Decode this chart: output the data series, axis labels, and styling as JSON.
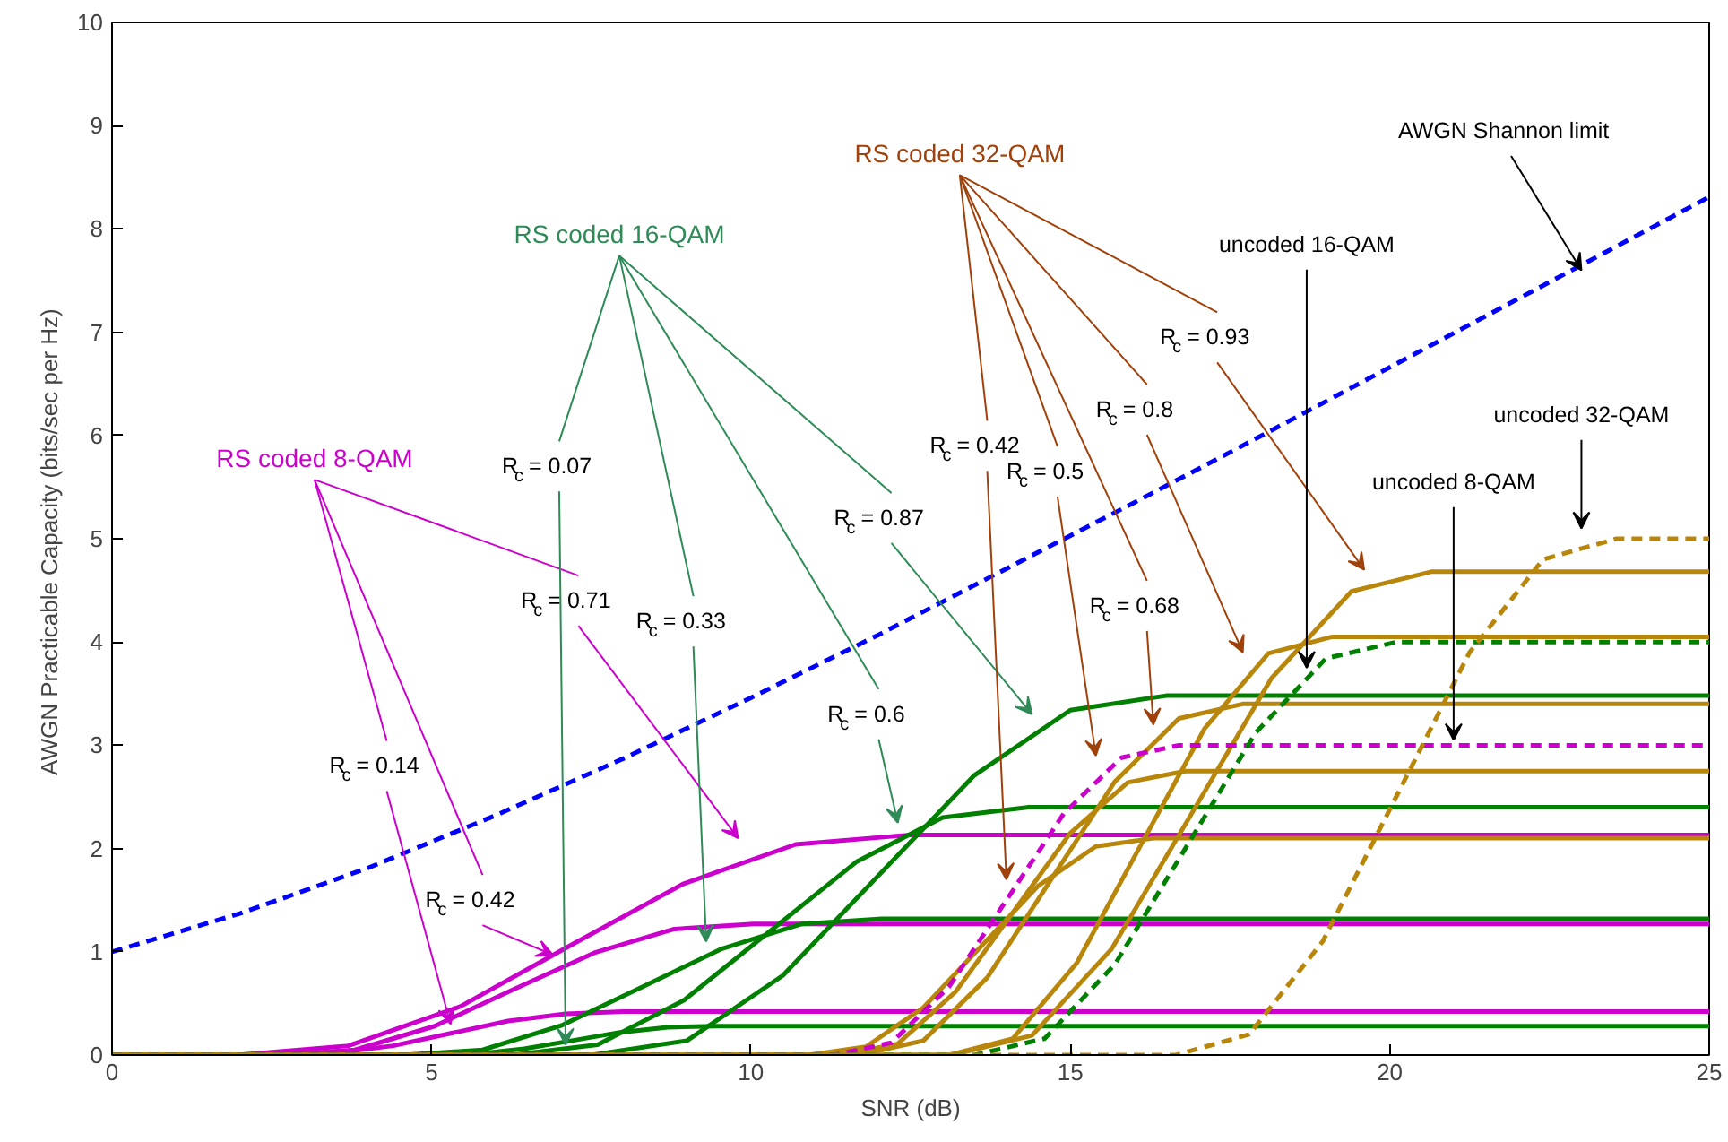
{
  "chart_data": {
    "type": "line",
    "xlabel": "SNR (dB)",
    "ylabel": "AWGN Practicable Capacity  (bits/sec per Hz)",
    "xlim": [
      0,
      25
    ],
    "ylim": [
      0,
      10
    ],
    "xticks": [
      0,
      5,
      10,
      15,
      20,
      25
    ],
    "yticks": [
      0,
      1,
      2,
      3,
      4,
      5,
      6,
      7,
      8,
      9,
      10
    ],
    "grid": false,
    "marker": "none",
    "series": [
      {
        "color": "#0000ff",
        "line_style": "dashed",
        "x": [
          0,
          2,
          4,
          6,
          8,
          10,
          12,
          14,
          16,
          18,
          20,
          22,
          24,
          25
        ],
        "values": [
          1,
          1.37,
          1.81,
          2.32,
          2.87,
          3.46,
          4.07,
          4.71,
          5.35,
          6.0,
          6.66,
          7.32,
          7.98,
          8.31
        ]
      },
      {
        "color": "#cc00cc",
        "line_style": "solid",
        "x": [
          0,
          2.6,
          3.5,
          4.4,
          5.3,
          6.2,
          7.1,
          8.0,
          25
        ],
        "values": [
          0,
          0,
          0.02,
          0.09,
          0.21,
          0.33,
          0.4,
          0.42,
          0.42
        ]
      },
      {
        "color": "#cc00cc",
        "line_style": "solid",
        "x": [
          0,
          2.55,
          3.8,
          5.05,
          6.3,
          7.55,
          8.8,
          10.05,
          25
        ],
        "values": [
          0,
          0,
          0.05,
          0.28,
          0.64,
          0.99,
          1.22,
          1.27,
          1.27
        ]
      },
      {
        "color": "#cc00cc",
        "line_style": "solid",
        "x": [
          0,
          1.95,
          3.7,
          5.45,
          7.2,
          8.95,
          10.7,
          12.45,
          25
        ],
        "values": [
          0,
          0,
          0.09,
          0.47,
          1.07,
          1.66,
          2.04,
          2.13,
          2.13
        ]
      },
      {
        "color": "#008000",
        "line_style": "solid",
        "x": [
          0,
          4.95,
          5.7,
          6.45,
          7.2,
          7.95,
          8.7,
          9.45,
          25
        ],
        "values": [
          0,
          0,
          0.01,
          0.06,
          0.14,
          0.22,
          0.27,
          0.28,
          0.28
        ]
      },
      {
        "color": "#008000",
        "line_style": "solid",
        "x": [
          0,
          4.55,
          5.8,
          7.05,
          8.3,
          9.55,
          10.8,
          12.05,
          25
        ],
        "values": [
          0,
          0,
          0.05,
          0.29,
          0.66,
          1.03,
          1.27,
          1.32,
          1.32
        ]
      },
      {
        "color": "#008000",
        "line_style": "solid",
        "x": [
          0,
          6.25,
          7.6,
          8.95,
          10.3,
          11.65,
          13.0,
          14.35,
          25
        ],
        "values": [
          0,
          0,
          0.1,
          0.53,
          1.2,
          1.87,
          2.3,
          2.4,
          2.4
        ]
      },
      {
        "color": "#008000",
        "line_style": "solid",
        "x": [
          0,
          7.5,
          9,
          10.5,
          12,
          13.5,
          15,
          16.5,
          25
        ],
        "values": [
          0,
          0,
          0.14,
          0.77,
          1.74,
          2.71,
          3.34,
          3.48,
          3.48
        ]
      },
      {
        "color": "#b8860b",
        "line_style": "solid",
        "x": [
          0,
          10.9,
          11.8,
          12.7,
          13.6,
          14.5,
          15.4,
          16.3,
          25
        ],
        "values": [
          0,
          0,
          0.08,
          0.46,
          1.05,
          1.64,
          2.02,
          2.1,
          2.1
        ]
      },
      {
        "color": "#b8860b",
        "line_style": "solid",
        "x": [
          0,
          11.4,
          12.3,
          13.2,
          14.1,
          15.0,
          15.9,
          16.8,
          25
        ],
        "values": [
          0,
          0,
          0.11,
          0.61,
          1.38,
          2.15,
          2.64,
          2.75,
          2.75
        ]
      },
      {
        "color": "#b8860b",
        "line_style": "solid",
        "x": [
          0,
          11.7,
          12.7,
          13.7,
          14.7,
          15.7,
          16.7,
          17.7,
          25
        ],
        "values": [
          0,
          0,
          0.14,
          0.75,
          1.7,
          2.65,
          3.26,
          3.4,
          3.4
        ]
      },
      {
        "color": "#b8860b",
        "line_style": "solid",
        "x": [
          0,
          13.1,
          14.1,
          15.1,
          16.1,
          17.1,
          18.1,
          19.1,
          25
        ],
        "values": [
          0,
          0,
          0.16,
          0.89,
          2.03,
          3.16,
          3.89,
          4.05,
          4.05
        ]
      },
      {
        "color": "#b8860b",
        "line_style": "solid",
        "x": [
          0,
          13.15,
          14.4,
          15.65,
          16.9,
          18.15,
          19.4,
          20.65,
          25
        ],
        "values": [
          0,
          0,
          0.19,
          1.03,
          2.34,
          3.65,
          4.49,
          4.68,
          4.68
        ]
      },
      {
        "color": "#cc00cc",
        "line_style": "dashed",
        "x": [
          0,
          11.3,
          12.2,
          13.1,
          14.0,
          14.9,
          15.8,
          16.7,
          25
        ],
        "values": [
          0,
          0,
          0.12,
          0.66,
          1.5,
          2.34,
          2.88,
          3.0,
          3.0
        ]
      },
      {
        "color": "#008000",
        "line_style": "dashed",
        "x": [
          0,
          13.5,
          14.6,
          15.7,
          16.8,
          17.9,
          19.0,
          20.1,
          25
        ],
        "values": [
          0,
          0,
          0.16,
          0.88,
          2.0,
          3.12,
          3.84,
          4.0,
          4.0
        ]
      },
      {
        "color": "#b8860b",
        "line_style": "dashed",
        "x": [
          0,
          16.65,
          17.8,
          18.95,
          20.1,
          21.25,
          22.4,
          23.55,
          25
        ],
        "values": [
          0,
          0,
          0.2,
          1.1,
          2.5,
          3.9,
          4.8,
          5.0,
          5.0
        ]
      }
    ],
    "annotations": [
      "RS coded 8-QAM",
      "RS coded 16-QAM",
      "RS coded 32-QAM",
      {
        "text": "R$_{c}$ = 0.14",
        "x": 5.3,
        "y": 0.3
      },
      {
        "text": "R$_{c}$ = 0.42",
        "x": 6.9,
        "y": 0.97
      },
      "R$_{c}$ = 0.71",
      {
        "text": "R$_{c}$ = 0.07",
        "x": 7.1,
        "y": 0.1
      },
      "R$_{c}$ = 0.33",
      "R$_{c}$ = 0.6",
      "R$_{c}$ = 0.87",
      "R$_{c}$ = 0.42",
      "R$_{c}$ = 0.5",
      "R$_{c}$ = 0.68",
      "R$_{c}$ = 0.8",
      "R$_{c}$ = 0.93",
      {
        "text": "uncoded 16-QAM",
        "x": 18.7,
        "y": 3.75
      },
      {
        "text": "uncoded 8-QAM",
        "x": 21.0,
        "y": 3.05
      },
      "uncoded 32-QAM",
      {
        "text": "AWGN Shannon limit",
        "x": 23.0,
        "y": 7.6
      }
    ]
  }
}
